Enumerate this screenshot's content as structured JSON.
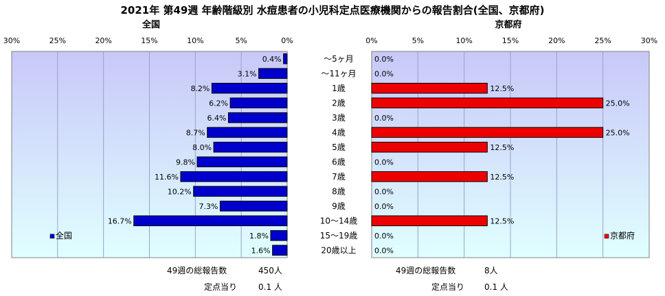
{
  "title": "2021年 第49週 年齢階級別 水痘患者の小児科定点医療機関からの報告割合(全国、京都府)",
  "colors": {
    "national_bar": "#0000cc",
    "kyoto_bar": "#ee0000",
    "plot_bg_top": "#c8c8f8",
    "plot_bg_bottom": "#e0ffff",
    "gridline": "#9aa0c8"
  },
  "chart_data": [
    {
      "type": "bar",
      "orientation": "horizontal",
      "direction": "right-to-left",
      "title": "全国",
      "categories": [
        "〜5ヶ月",
        "〜11ヶ月",
        "1歳",
        "2歳",
        "3歳",
        "4歳",
        "5歳",
        "6歳",
        "7歳",
        "8歳",
        "9歳",
        "10〜14歳",
        "15〜19歳",
        "20歳以上"
      ],
      "series": [
        {
          "name": "全国",
          "values": [
            0.4,
            3.1,
            8.2,
            6.2,
            6.4,
            8.7,
            8.0,
            9.8,
            11.6,
            10.2,
            7.3,
            16.7,
            1.8,
            1.6
          ]
        }
      ],
      "data_labels": [
        "0.4%",
        "3.1%",
        "8.2%",
        "6.2%",
        "6.4%",
        "8.7%",
        "8.0%",
        "9.8%",
        "11.6%",
        "10.2%",
        "7.3%",
        "16.7%",
        "1.8%",
        "1.6%"
      ],
      "xlim": [
        0,
        30
      ],
      "xticks": [
        "30%",
        "25%",
        "20%",
        "15%",
        "10%",
        "5%",
        "0%"
      ],
      "grid": true,
      "legend_position": "bottom-left"
    },
    {
      "type": "bar",
      "orientation": "horizontal",
      "direction": "left-to-right",
      "title": "京都府",
      "categories": [
        "〜5ヶ月",
        "〜11ヶ月",
        "1歳",
        "2歳",
        "3歳",
        "4歳",
        "5歳",
        "6歳",
        "7歳",
        "8歳",
        "9歳",
        "10〜14歳",
        "15〜19歳",
        "20歳以上"
      ],
      "series": [
        {
          "name": "京都府",
          "values": [
            0.0,
            0.0,
            12.5,
            25.0,
            0.0,
            25.0,
            12.5,
            0.0,
            12.5,
            0.0,
            0.0,
            12.5,
            0.0,
            0.0
          ]
        }
      ],
      "data_labels": [
        "0.0%",
        "0.0%",
        "12.5%",
        "25.0%",
        "0.0%",
        "25.0%",
        "12.5%",
        "0.0%",
        "12.5%",
        "0.0%",
        "0.0%",
        "12.5%",
        "0.0%",
        "0.0%"
      ],
      "xlim": [
        0,
        30
      ],
      "xticks": [
        "0%",
        "5%",
        "10%",
        "15%",
        "20%",
        "25%",
        "30%"
      ],
      "grid": true,
      "legend_position": "bottom-right"
    }
  ],
  "footer": {
    "national": {
      "total_label": "49週の総報告数",
      "total_value": "450人",
      "per_label": "定点当り",
      "per_value": "0.1 人"
    },
    "kyoto": {
      "total_label": "49週の総報告数",
      "total_value": "8人",
      "per_label": "定点当り",
      "per_value": "0.1 人"
    }
  }
}
